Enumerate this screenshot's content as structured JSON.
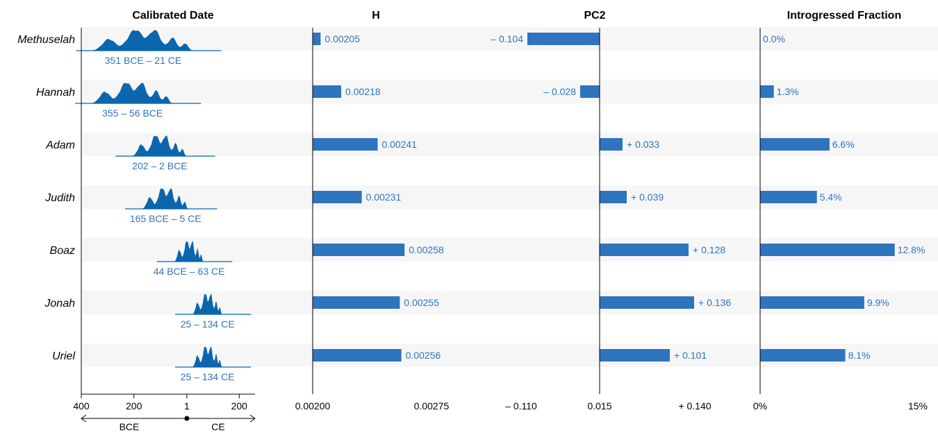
{
  "colors": {
    "accent": "#2f74be",
    "text_value": "#2f74be",
    "band": "#f6f6f6",
    "density": "#0b66ad"
  },
  "chart_data": {
    "type": "bar",
    "rows": [
      "Methuselah",
      "Hannah",
      "Adam",
      "Judith",
      "Boaz",
      "Jonah",
      "Uriel"
    ],
    "panels": {
      "date": {
        "title": "Calibrated Date",
        "type": "area",
        "ranges": [
          {
            "label": "351 BCE – 21 CE",
            "from": -351,
            "to": 21
          },
          {
            "label": "355 – 56 BCE",
            "from": -355,
            "to": -56
          },
          {
            "label": "202 – 2 BCE",
            "from": -202,
            "to": -2
          },
          {
            "label": "165 BCE – 5 CE",
            "from": -165,
            "to": 5
          },
          {
            "label": "44 BCE – 63 CE",
            "from": -44,
            "to": 63
          },
          {
            "label": "25 – 134 CE",
            "from": 25,
            "to": 134
          },
          {
            "label": "25 – 134 CE",
            "from": 25,
            "to": 134
          }
        ],
        "xlim": [
          -400,
          260
        ],
        "ticks": [
          {
            "label": "400",
            "value": -400
          },
          {
            "label": "200",
            "value": -200
          },
          {
            "label": "1",
            "value": 1
          },
          {
            "label": "200",
            "value": 200
          }
        ],
        "axis_left": "BCE",
        "axis_right": "CE"
      },
      "h": {
        "title": "H",
        "values": [
          0.00205,
          0.00218,
          0.00241,
          0.00231,
          0.00258,
          0.00255,
          0.00256
        ],
        "labels": [
          "0.00205",
          "0.00218",
          "0.00241",
          "0.00231",
          "0.00258",
          "0.00255",
          "0.00256"
        ],
        "xlim": [
          0.002,
          0.00275
        ],
        "ticks": [
          "0.00200",
          "0.00275"
        ]
      },
      "pc2": {
        "title": "PC2",
        "values": [
          -0.104,
          -0.028,
          0.033,
          0.039,
          0.128,
          0.136,
          0.101
        ],
        "labels": [
          "– 0.104",
          "– 0.028",
          "+ 0.033",
          "+ 0.039",
          "+ 0.128",
          "+ 0.136",
          "+ 0.101"
        ],
        "ticks": [
          "– 0.110",
          "0.015",
          "+ 0.140"
        ]
      },
      "introgressed": {
        "title": "Introgressed Fraction",
        "values": [
          0.0,
          1.3,
          6.6,
          5.4,
          12.8,
          9.9,
          8.1
        ],
        "labels": [
          "0.0%",
          "1.3%",
          "6.6%",
          "5.4%",
          "12.8%",
          "9.9%",
          "8.1%"
        ],
        "xlim": [
          0,
          15
        ],
        "ticks": [
          "0%",
          "15%"
        ]
      }
    }
  }
}
